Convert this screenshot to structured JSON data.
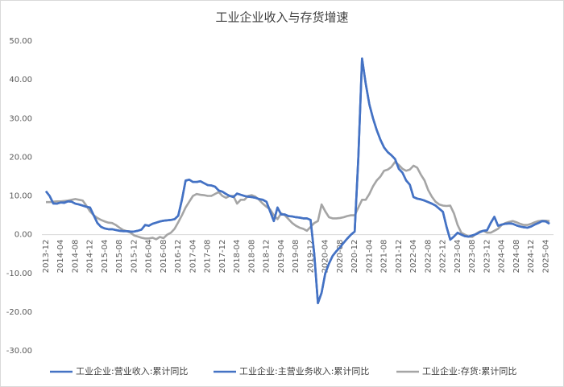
{
  "chart_data": {
    "type": "line",
    "title": "工业企业收入与存货增速",
    "categories": [
      "2013-12",
      null,
      null,
      null,
      "2014-04",
      null,
      null,
      null,
      "2014-08",
      null,
      null,
      null,
      "2014-12",
      null,
      null,
      null,
      "2015-04",
      null,
      null,
      null,
      "2015-08",
      null,
      null,
      null,
      "2015-12",
      null,
      null,
      null,
      "2016-04",
      null,
      null,
      null,
      "2016-08",
      null,
      null,
      null,
      "2016-12",
      null,
      null,
      null,
      "2017-04",
      null,
      null,
      null,
      "2017-08",
      null,
      null,
      null,
      "2017-12",
      null,
      null,
      null,
      "2018-04",
      null,
      null,
      null,
      "2018-08",
      null,
      null,
      null,
      "2018-12",
      null,
      null,
      null,
      "2019-04",
      null,
      null,
      null,
      "2019-08",
      null,
      null,
      null,
      "2019-12",
      null,
      null,
      null,
      "2020-04",
      null,
      null,
      null,
      "2020-08",
      null,
      null,
      null,
      "2020-12",
      null,
      null,
      null,
      "2021-04",
      null,
      null,
      null,
      "2021-08",
      null,
      null,
      null,
      "2021-12",
      null,
      null,
      null,
      "2022-04",
      null,
      null,
      null,
      "2022-08",
      null,
      null,
      null,
      "2022-12",
      null,
      null,
      null,
      "2023-04",
      null,
      null,
      null,
      "2023-08",
      null,
      null,
      null,
      "2023-12",
      null,
      null,
      null,
      "2024-04",
      null,
      null,
      null,
      "2024-08",
      null,
      null,
      null,
      "2024-12",
      null,
      null,
      null,
      "2025-04",
      null
    ],
    "series": [
      {
        "name": "工业企业:营业收入:累计同比",
        "color": "#4472c4",
        "values": [
          11.2,
          10,
          8.0,
          8.0,
          8.3,
          8.2,
          8.6,
          8.5,
          8.0,
          7.8,
          7.5,
          7.2,
          7.0,
          5.0,
          3.0,
          2.0,
          1.6,
          1.4,
          1.4,
          1.2,
          1.0,
          0.9,
          0.9,
          0.8,
          0.8,
          1.0,
          1.3,
          2.5,
          2.3,
          2.8,
          3.1,
          3.4,
          3.6,
          3.7,
          3.8,
          4.0,
          4.9,
          9.0,
          13.9,
          14.2,
          13.6,
          13.6,
          13.8,
          13.3,
          12.8,
          12.7,
          12.4,
          11.4,
          11.1,
          10.5,
          10.0,
          9.7,
          10.6,
          10.3,
          10.0,
          9.8,
          9.7,
          9.5,
          9.2,
          9.0,
          8.5,
          6.0,
          3.5,
          7.0,
          5.2,
          5.2,
          4.8,
          4.7,
          4.5,
          4.4,
          4.2,
          4.2,
          3.8,
          -5,
          -17.7,
          -15.0,
          -10.0,
          -7.5,
          -5.5,
          -4.3,
          -3.3,
          -2.1,
          -1.0,
          0.0,
          0.8,
          20,
          45.5,
          39.0,
          33.6,
          30.0,
          27.0,
          24.5,
          22.5,
          21.3,
          20.5,
          19.5,
          17.0,
          16,
          14.0,
          12.9,
          9.7,
          9.3,
          9.1,
          8.8,
          8.4,
          8.0,
          7.5,
          6.7,
          5.9,
          2.0,
          -1.3,
          -0.5,
          0.5,
          0.0,
          -0.4,
          -0.5,
          -0.2,
          0.1,
          0.6,
          1.0,
          1.1,
          3.0,
          4.6,
          2.3,
          2.6,
          2.8,
          2.9,
          2.8,
          2.4,
          2.1,
          1.9,
          1.8,
          2.1,
          2.6,
          3.0,
          3.5,
          3.4,
          2.8
        ]
      },
      {
        "name": "工业企业:主营业务收入:累计同比",
        "color": "#4472c4",
        "values": [
          11.2,
          10,
          8.1,
          8.0,
          8.3,
          8.3,
          8.6,
          8.5,
          8.0,
          7.8,
          7.5,
          7.2,
          7.0,
          5.0,
          3.0,
          2.0,
          1.6,
          1.4,
          1.4,
          1.2,
          1.0,
          0.9,
          0.9,
          0.8,
          0.8,
          1.0,
          1.3,
          2.5,
          2.3,
          2.8,
          3.1,
          3.4,
          3.6,
          3.7,
          3.8,
          4.0,
          4.9,
          9.0,
          14.0,
          14.2,
          13.6,
          13.6,
          13.8,
          13.3,
          12.8,
          12.7,
          12.4,
          11.4,
          11.1,
          10.5,
          10.0,
          9.7,
          10.6,
          10.3,
          10.0,
          9.8,
          9.7,
          9.5,
          9.2,
          9.0,
          8.5,
          6.0,
          3.5,
          7.0,
          5.2,
          5.2,
          4.8,
          4.7,
          4.5,
          4.4,
          4.2,
          4.2,
          3.8,
          -5,
          -17.7,
          -15.0,
          -10.0,
          -7.5,
          -5.5,
          -4.3,
          -3.3,
          -2.1,
          -1.0,
          0.0,
          0.8,
          20,
          45.5,
          39.0,
          33.6,
          30.0,
          27.0,
          24.5,
          22.5,
          21.3,
          20.5,
          19.5,
          17.0,
          16,
          14.0,
          12.9,
          9.7,
          9.3,
          9.1,
          8.8,
          8.4,
          8.0,
          7.5,
          6.7,
          5.9,
          2.0,
          -1.3,
          -0.5,
          0.5,
          0.0,
          -0.4,
          -0.5,
          -0.2,
          0.1,
          0.6,
          1.0,
          1.1,
          3.0,
          4.6,
          2.3,
          2.6,
          2.8,
          2.9,
          2.8,
          2.4,
          2.1,
          1.9,
          1.8,
          2.1,
          2.6,
          3.0,
          3.5,
          3.4,
          2.8
        ]
      },
      {
        "name": "工业企业:存货:累计同比",
        "color": "#a5a5a5",
        "values": [
          8.4,
          8.4,
          8.5,
          8.6,
          8.6,
          8.7,
          8.8,
          9.0,
          9.2,
          9.0,
          8.8,
          7.5,
          6.0,
          5.0,
          4.3,
          3.8,
          3.4,
          3.1,
          3.0,
          2.5,
          1.8,
          1.2,
          0.9,
          0.5,
          -0.2,
          -0.5,
          -0.8,
          -1.0,
          -1.0,
          -0.8,
          -1.2,
          -0.6,
          -0.9,
          0.0,
          0.5,
          1.5,
          3.2,
          5.0,
          7.0,
          8.5,
          10.0,
          10.5,
          10.3,
          10.2,
          10.0,
          10.0,
          10.5,
          11.0,
          10.0,
          9.5,
          10.0,
          10.0,
          8.0,
          9.0,
          9.0,
          10.0,
          10.2,
          9.8,
          9.0,
          8.0,
          7.2,
          6.5,
          5.0,
          4.0,
          5.5,
          5.0,
          4.0,
          3.0,
          2.3,
          1.8,
          1.5,
          1.0,
          2.0,
          3.0,
          3.5,
          7.8,
          6.0,
          4.5,
          4.2,
          4.2,
          4.3,
          4.5,
          4.8,
          5.0,
          5.0,
          7.0,
          9.0,
          9.0,
          10.5,
          12.5,
          14.0,
          15.0,
          16.5,
          16.8,
          17.5,
          18.8,
          18.0,
          17.0,
          16.5,
          16.8,
          17.8,
          17.3,
          15.5,
          14.0,
          11.5,
          9.8,
          8.5,
          7.8,
          7.5,
          7.4,
          7.5,
          5.5,
          2.5,
          0.5,
          0.0,
          -0.5,
          -0.6,
          0.2,
          0.8,
          1.0,
          0.5,
          0.5,
          1.0,
          1.5,
          2.5,
          3.0,
          3.3,
          3.5,
          3.2,
          2.8,
          2.5,
          2.5,
          2.8,
          3.2,
          3.5,
          3.6,
          3.6,
          3.5
        ]
      }
    ],
    "ylim": [
      -30,
      50
    ],
    "yticks": [
      {
        "value": 50,
        "label": "50.00"
      },
      {
        "value": 40,
        "label": "40.00"
      },
      {
        "value": 30,
        "label": "30.00"
      },
      {
        "value": 20,
        "label": "20.00"
      },
      {
        "value": 10,
        "label": "10.00"
      },
      {
        "value": 0,
        "label": "0.00"
      },
      {
        "value": -10,
        "label": "-10.00"
      },
      {
        "value": -20,
        "label": "-20.00"
      },
      {
        "value": -30,
        "label": "-30.00"
      }
    ],
    "grid": false,
    "legend": "bottom"
  }
}
